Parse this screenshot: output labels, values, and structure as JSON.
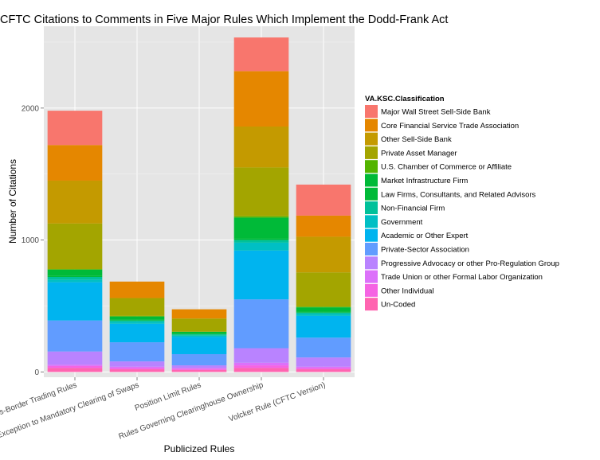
{
  "chart_data": {
    "type": "bar",
    "stacked": true,
    "title": "CFTC Citations to Comments in Five Major Rules Which Implement the Dodd-Frank Act",
    "xlabel": "Publicized Rules",
    "ylabel": "Number of Citations",
    "ylim": [
      -40,
      2620
    ],
    "yticks": [
      0,
      1000,
      2000
    ],
    "grid": true,
    "legend_title": "VA.KSC.Classification",
    "legend_position": "right",
    "categories": [
      "Cross-Border Trading Rules",
      "End-User Exception to Mandatory Clearing of Swaps",
      "Position Limit Rules",
      "Rules Governing Clearinghouse Ownership",
      "Volcker Rule (CFTC Version)"
    ],
    "series": [
      {
        "name": "Un-Coded",
        "color": "#FF64B0",
        "values": [
          30,
          20,
          15,
          30,
          20
        ]
      },
      {
        "name": "Other Individual",
        "color": "#F564E3",
        "values": [
          15,
          10,
          10,
          20,
          10
        ]
      },
      {
        "name": "Trade Union or other Formal Labor Organization",
        "color": "#DC71FA",
        "values": [
          10,
          10,
          5,
          20,
          10
        ]
      },
      {
        "name": "Progressive Advocacy or other Pro-Regulation Group",
        "color": "#B983FF",
        "values": [
          100,
          40,
          20,
          110,
          70
        ]
      },
      {
        "name": "Private-Sector Association",
        "color": "#619CFF",
        "values": [
          235,
          145,
          85,
          370,
          150
        ]
      },
      {
        "name": "Academic or Other Expert",
        "color": "#00B4EF",
        "values": [
          290,
          140,
          130,
          370,
          165
        ]
      },
      {
        "name": "Government",
        "color": "#00BFC4",
        "values": [
          20,
          15,
          10,
          60,
          15
        ]
      },
      {
        "name": "Non-Financial Firm",
        "color": "#00C19A",
        "values": [
          20,
          10,
          10,
          20,
          10
        ]
      },
      {
        "name": "Law Firms, Consultants, and Related Advisors",
        "color": "#00BA38",
        "values": [
          10,
          5,
          5,
          10,
          5
        ]
      },
      {
        "name": "Market Infrastructure Firm",
        "color": "#00BA38",
        "values": [
          45,
          25,
          15,
          160,
          35
        ]
      },
      {
        "name": "U.S. Chamber of Commerce or Affiliate",
        "color": "#53B400",
        "values": [
          5,
          5,
          0,
          10,
          5
        ]
      },
      {
        "name": "Private Asset Manager",
        "color": "#A3A500",
        "values": [
          345,
          135,
          100,
          370,
          260
        ]
      },
      {
        "name": "Other Sell-Side Bank",
        "color": "#C49A00",
        "values": [
          325,
          0,
          0,
          310,
          270
        ]
      },
      {
        "name": "Core Financial Service Trade Association",
        "color": "#E58700",
        "values": [
          270,
          125,
          70,
          420,
          160
        ]
      },
      {
        "name": "Major Wall Street Sell-Side Bank",
        "color": "#F8766D",
        "values": [
          260,
          0,
          0,
          255,
          235
        ]
      }
    ]
  }
}
